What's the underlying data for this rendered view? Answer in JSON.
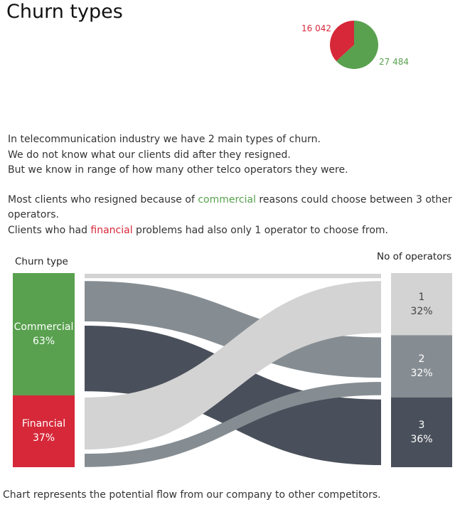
{
  "title": "Churn types",
  "colors": {
    "commercial": "#59a14f",
    "financial": "#d62839",
    "op1": "#d3d3d3",
    "op2": "#868d92",
    "op3": "#4a505b"
  },
  "intro": {
    "line1": "In telecommunication industry we have 2 main types of churn.",
    "line2": "We do not know what our clients did after they resigned.",
    "line3": "But we know in range of how many other telco operators they were.",
    "p2_pre": "Most clients who resigned because of ",
    "p2_kw": "commercial",
    "p2_post": " reasons could choose between 3 other operators.",
    "p3_pre": "Clients who had ",
    "p3_kw": "financial",
    "p3_post": " problems had also only 1 operator to choose from."
  },
  "headers": {
    "left": "Churn type",
    "right": "No of operators"
  },
  "footer": "Chart represents the potential flow from our company to other competitors.",
  "chart_data": [
    {
      "type": "pie",
      "slices": [
        {
          "name": "Commercial",
          "value": 27484,
          "label": "27 484",
          "color": "#59a14f"
        },
        {
          "name": "Financial",
          "value": 16042,
          "label": "16 042",
          "color": "#d62839"
        }
      ]
    },
    {
      "type": "sankey",
      "source_header": "Churn type",
      "target_header": "No of operators",
      "sources": [
        {
          "name": "Commercial",
          "share": "63%",
          "fraction": 0.63,
          "color": "#59a14f"
        },
        {
          "name": "Financial",
          "share": "37%",
          "fraction": 0.37,
          "color": "#d62839"
        }
      ],
      "targets": [
        {
          "name": "1",
          "share": "32%",
          "fraction": 0.32,
          "color": "#d3d3d3"
        },
        {
          "name": "2",
          "share": "32%",
          "fraction": 0.32,
          "color": "#868d92"
        },
        {
          "name": "3",
          "share": "36%",
          "fraction": 0.36,
          "color": "#4a505b"
        }
      ],
      "flows": [
        {
          "from": "Commercial",
          "to": "1",
          "fraction": 0.03
        },
        {
          "from": "Commercial",
          "to": "2",
          "fraction": 0.23
        },
        {
          "from": "Commercial",
          "to": "3",
          "fraction": 0.36
        },
        {
          "from": "Financial",
          "to": "1",
          "fraction": 0.29
        },
        {
          "from": "Financial",
          "to": "2",
          "fraction": 0.09
        },
        {
          "from": "Financial",
          "to": "3",
          "fraction": 0.0
        }
      ]
    }
  ]
}
